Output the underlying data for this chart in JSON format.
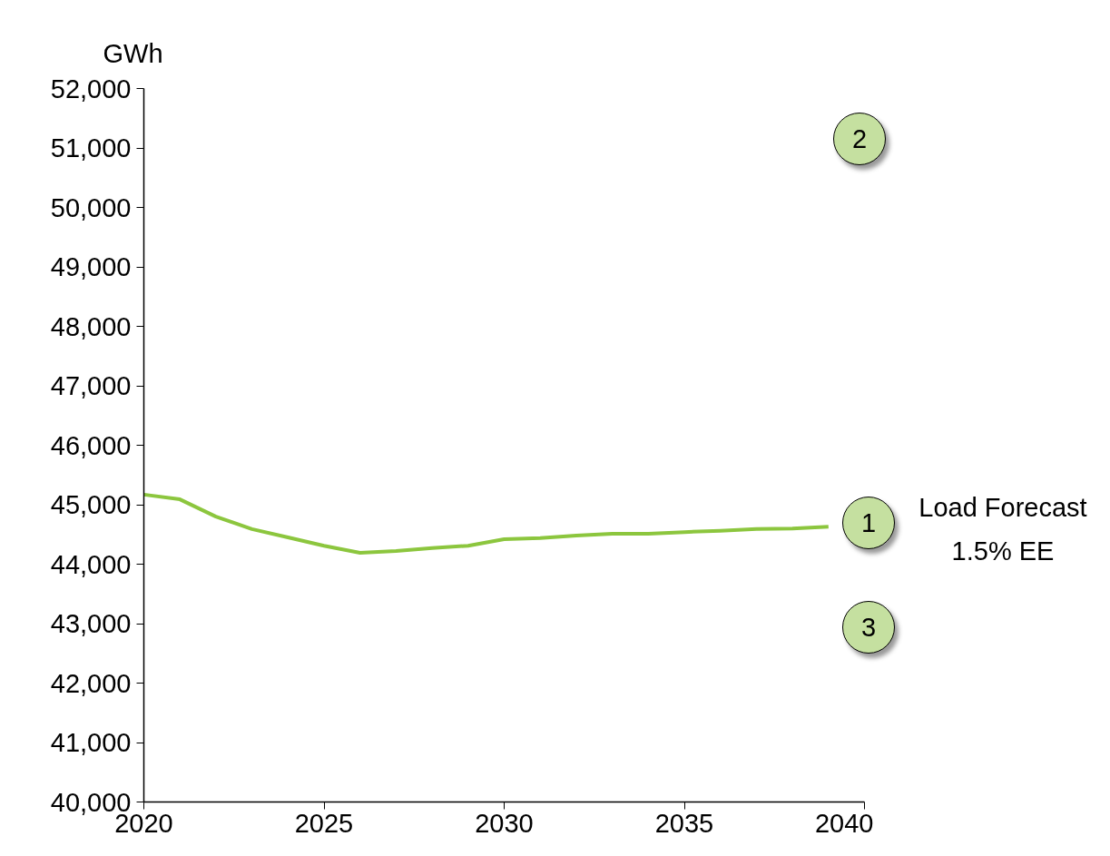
{
  "chart_data": {
    "type": "line",
    "ylabel": "GWh",
    "x": [
      2020,
      2021,
      2022,
      2023,
      2024,
      2025,
      2026,
      2027,
      2028,
      2029,
      2030,
      2031,
      2032,
      2033,
      2034,
      2035,
      2036,
      2037,
      2038,
      2039
    ],
    "series": [
      {
        "color": "#8cc63e",
        "values": [
          45170,
          45090,
          44800,
          44590,
          44450,
          44310,
          44190,
          44220,
          44270,
          44310,
          44420,
          44440,
          44480,
          44510,
          44510,
          44540,
          44560,
          44590,
          44600,
          44630
        ]
      }
    ],
    "xlim": [
      2020,
      2040
    ],
    "xticks": [
      2020,
      2025,
      2030,
      2035,
      2040
    ],
    "ylim": [
      40000,
      52000
    ],
    "yticks": [
      {
        "value": 40000,
        "label": "40,000"
      },
      {
        "value": 41000,
        "label": "41,000"
      },
      {
        "value": 42000,
        "label": "42,000"
      },
      {
        "value": 43000,
        "label": "43,000"
      },
      {
        "value": 44000,
        "label": "44,000"
      },
      {
        "value": 45000,
        "label": "45,000"
      },
      {
        "value": 46000,
        "label": "46,000"
      },
      {
        "value": 47000,
        "label": "47,000"
      },
      {
        "value": 48000,
        "label": "48,000"
      },
      {
        "value": 49000,
        "label": "49,000"
      },
      {
        "value": 50000,
        "label": "50,000"
      },
      {
        "value": 51000,
        "label": "51,000"
      },
      {
        "value": 52000,
        "label": "52,000"
      }
    ],
    "grid": false,
    "marker": "none",
    "line_style": "solid",
    "annotations": [
      "1",
      "2",
      "3",
      "Load Forecast\n1.5% EE"
    ]
  }
}
